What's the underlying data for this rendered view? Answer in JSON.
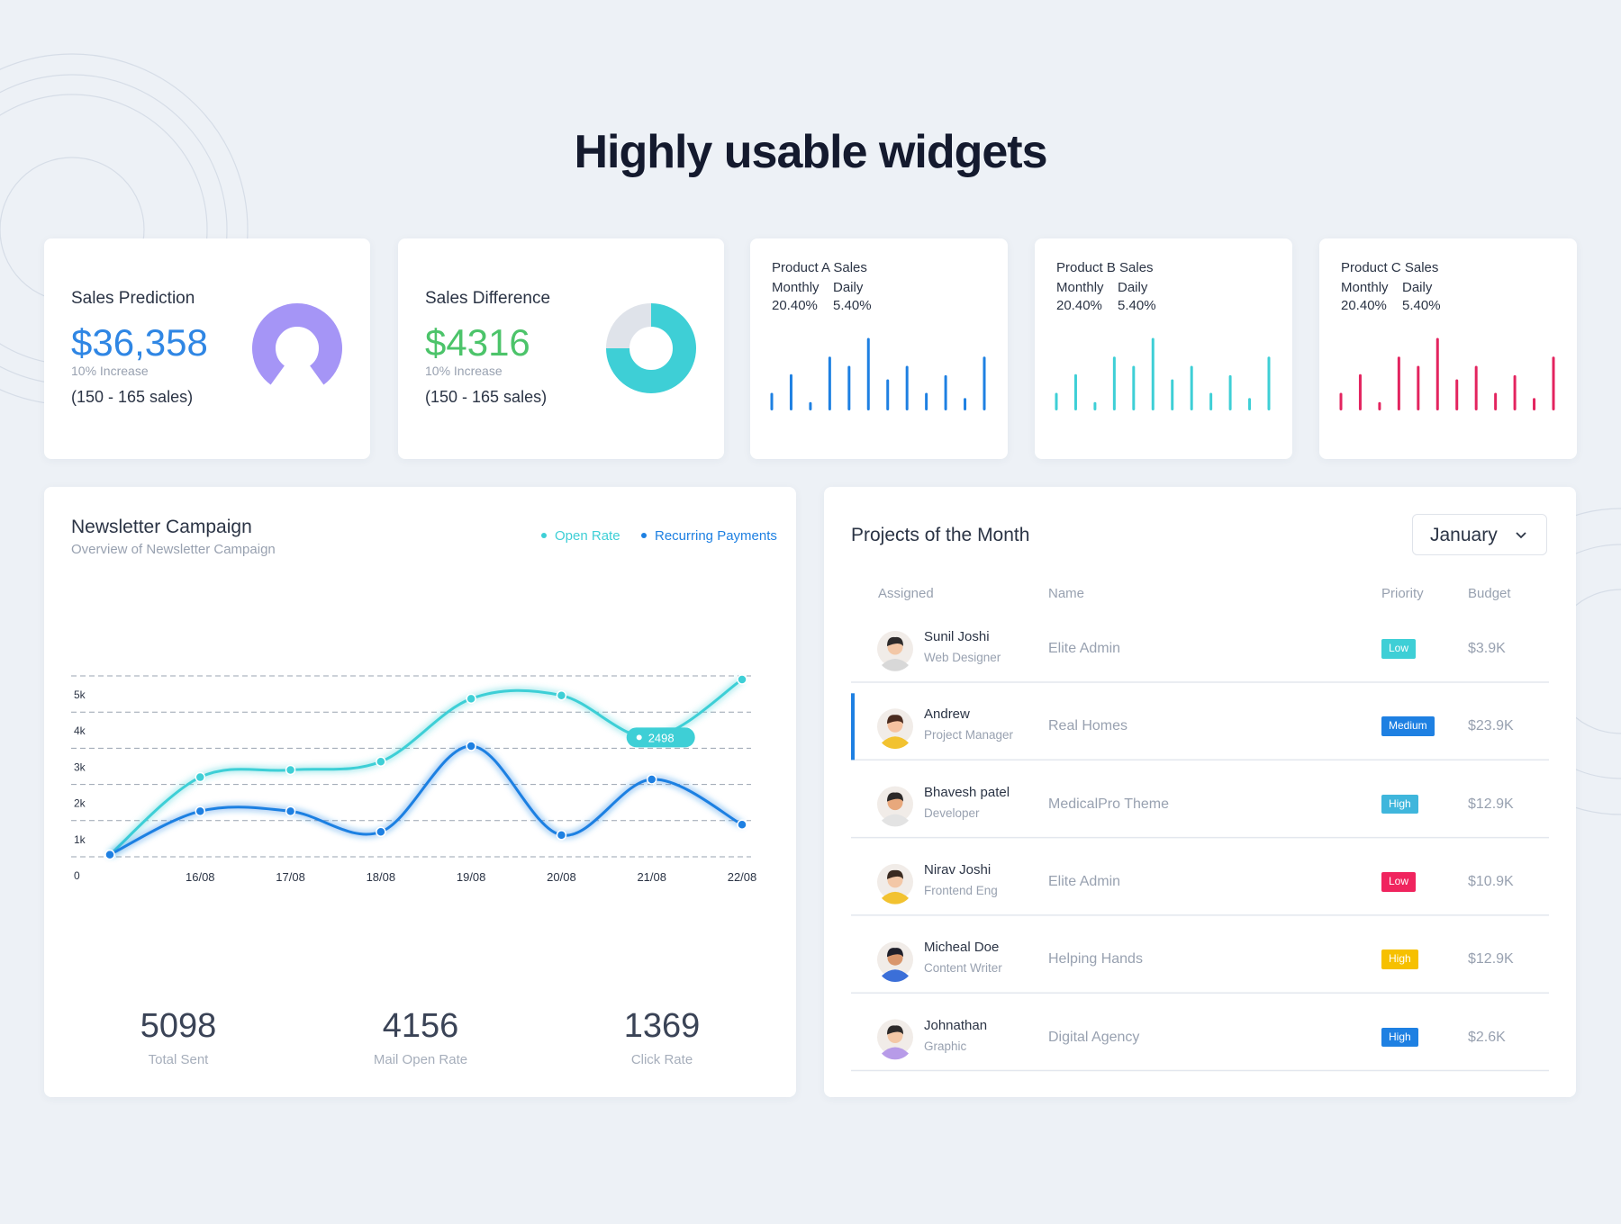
{
  "heading": "Highly usable widgets",
  "sales_prediction": {
    "title": "Sales Prediction",
    "amount": "$36,358",
    "change": "10% Increase",
    "range": "(150 - 165 sales)",
    "chart_data": {
      "type": "gauge",
      "value": 80,
      "ylim": [
        0,
        100
      ],
      "color": "#a595f6"
    }
  },
  "sales_difference": {
    "title": "Sales Difference",
    "amount": "$4316",
    "change": "10% Increase",
    "range": "(150 - 165 sales)",
    "chart_data": {
      "type": "donut",
      "values": [
        75,
        25
      ],
      "colors": [
        "#3ecfd6",
        "#dfe3ea"
      ]
    }
  },
  "product_sales": [
    {
      "title": "Product A Sales",
      "labels": [
        "Monthly",
        "Daily"
      ],
      "rates": [
        "20.40%",
        "5.40%"
      ],
      "chart_data": {
        "type": "bar",
        "values": [
          17,
          35,
          8,
          52,
          43,
          70,
          30,
          43,
          17,
          34,
          12,
          52
        ],
        "color": "#1e80e2",
        "ylim": [
          0,
          80
        ]
      }
    },
    {
      "title": "Product B Sales",
      "labels": [
        "Monthly",
        "Daily"
      ],
      "rates": [
        "20.40%",
        "5.40%"
      ],
      "chart_data": {
        "type": "bar",
        "values": [
          17,
          35,
          8,
          52,
          43,
          70,
          30,
          43,
          17,
          34,
          12,
          52
        ],
        "color": "#3ecfd6",
        "ylim": [
          0,
          80
        ]
      }
    },
    {
      "title": "Product C Sales",
      "labels": [
        "Monthly",
        "Daily"
      ],
      "rates": [
        "20.40%",
        "5.40%"
      ],
      "chart_data": {
        "type": "bar",
        "values": [
          17,
          35,
          8,
          52,
          43,
          70,
          30,
          43,
          17,
          34,
          12,
          52
        ],
        "color": "#e3245f",
        "ylim": [
          0,
          80
        ]
      }
    }
  ],
  "newsletter": {
    "title": "Newsletter Campaign",
    "subtitle": "Overview of Newsletter Campaign",
    "chart_data": {
      "type": "line",
      "categories": [
        null,
        "16/08",
        "17/08",
        "18/08",
        "19/08",
        "20/08",
        "21/08",
        "22/08"
      ],
      "series": [
        {
          "name": "Open Rate",
          "color": "#3ecfd6",
          "values": [
            60,
            2200,
            2400,
            2630,
            4370,
            4460,
            3300,
            4900
          ]
        },
        {
          "name": "Recurring Payments",
          "color": "#1e80e2",
          "values": [
            60,
            1260,
            1260,
            690,
            3060,
            600,
            2140,
            890
          ]
        }
      ],
      "ylim": [
        0,
        5000
      ],
      "yticks": [
        0,
        {
          "value": 1000,
          "label": "1k"
        },
        {
          "value": 2000,
          "label": "2k"
        },
        {
          "value": 3000,
          "label": "3k"
        },
        {
          "value": 4000,
          "label": "4k"
        },
        {
          "value": 5000,
          "label": "5k"
        }
      ],
      "grid": true,
      "annotation": "2498"
    },
    "stats": [
      {
        "value": 5098,
        "label": "Total Sent"
      },
      {
        "value": 4156,
        "label": "Mail Open Rate"
      },
      {
        "value": 1369,
        "label": "Click Rate"
      }
    ]
  },
  "projects": {
    "title": "Projects of the Month",
    "month": "January",
    "columns": [
      "Assigned",
      "Name",
      "Priority",
      "Budget"
    ],
    "rows": [
      {
        "name": "Sunil Joshi",
        "role": "Web Designer",
        "project": "Elite Admin",
        "priority": "Low",
        "priority_color": "#3ecfd6",
        "budget": "$3.9K",
        "selected": false
      },
      {
        "name": "Andrew",
        "role": "Project Manager",
        "project": "Real Homes",
        "priority": "Medium",
        "priority_color": "#1e80e2",
        "budget": "$23.9K",
        "selected": true
      },
      {
        "name": "Bhavesh patel",
        "role": "Developer",
        "project": "MedicalPro Theme",
        "priority": "High",
        "priority_color": "#3fb6dc",
        "budget": "$12.9K",
        "selected": false
      },
      {
        "name": "Nirav Joshi",
        "role": "Frontend Eng",
        "project": "Elite Admin",
        "priority": "Low",
        "priority_color": "#f0245e",
        "budget": "$10.9K",
        "selected": false
      },
      {
        "name": "Micheal Doe",
        "role": "Content Writer",
        "project": "Helping Hands",
        "priority": "High",
        "priority_color": "#f6c000",
        "budget": "$12.9K",
        "selected": false
      },
      {
        "name": "Johnathan",
        "role": "Graphic",
        "project": "Digital Agency",
        "priority": "High",
        "priority_color": "#1e80e2",
        "budget": "$2.6K",
        "selected": false
      }
    ]
  }
}
